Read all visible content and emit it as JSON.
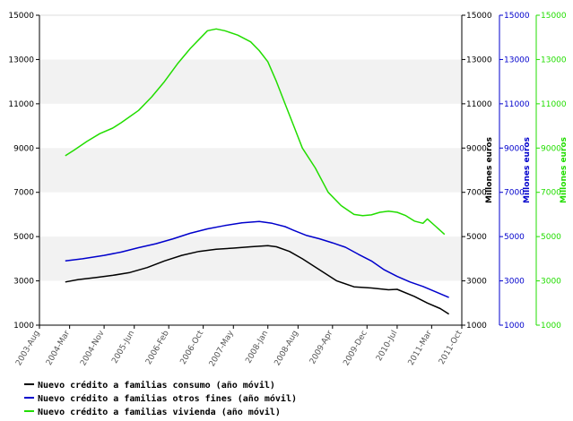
{
  "chart_data": {
    "type": "line",
    "title": "",
    "grid": "alternating horizontal bands",
    "legend_placement": "bottom-left",
    "x_axis": {
      "type": "date",
      "range": [
        "2003-08",
        "2011-10"
      ],
      "tick_labels": [
        "2003-Aug",
        "2004-Mar",
        "2004-Nov",
        "2005-Jun",
        "2006-Feb",
        "2006-Oct",
        "2007-May",
        "2008-Jan",
        "2008-Aug",
        "2009-Apr",
        "2009-Dec",
        "2010-Jul",
        "2011-Mar",
        "2011-Oct"
      ],
      "tick_dates": [
        "2003-08",
        "2004-03",
        "2004-11",
        "2005-06",
        "2006-02",
        "2006-10",
        "2007-05",
        "2008-01",
        "2008-08",
        "2009-04",
        "2009-12",
        "2010-07",
        "2011-03",
        "2011-10"
      ]
    },
    "y_axes": [
      {
        "side": "left",
        "ylim": [
          1000,
          15000
        ],
        "ticks": [
          "1000",
          "3000",
          "5000",
          "7000",
          "9000",
          "11000",
          "13000",
          "15000"
        ],
        "color": "#000000",
        "label": ""
      },
      {
        "side": "right",
        "ylim": [
          1000,
          15000
        ],
        "ticks": [
          "1000",
          "3000",
          "5000",
          "7000",
          "9000",
          "11000",
          "13000",
          "15000"
        ],
        "color": "#000000",
        "label": "Millones euros"
      },
      {
        "side": "right",
        "ylim": [
          1000,
          15000
        ],
        "ticks": [
          "1000",
          "3000",
          "5000",
          "7000",
          "9000",
          "11000",
          "13000",
          "15000"
        ],
        "color": "#0000cc",
        "label": "Millones euros"
      },
      {
        "side": "right",
        "ylim": [
          1000,
          15000
        ],
        "ticks": [
          "1000",
          "3000",
          "5000",
          "7000",
          "9000",
          "11000",
          "13000",
          "15000"
        ],
        "color": "#22dd00",
        "label": "Millones euros"
      }
    ],
    "series": [
      {
        "name": "Nuevo crédito a familias consumo (año móvil)",
        "color": "#000000",
        "points": [
          [
            "2004-02",
            2950
          ],
          [
            "2004-05",
            3060
          ],
          [
            "2004-09",
            3150
          ],
          [
            "2005-01",
            3250
          ],
          [
            "2005-05",
            3380
          ],
          [
            "2005-09",
            3600
          ],
          [
            "2006-01",
            3900
          ],
          [
            "2006-05",
            4150
          ],
          [
            "2006-09",
            4330
          ],
          [
            "2007-01",
            4430
          ],
          [
            "2007-05",
            4480
          ],
          [
            "2007-09",
            4540
          ],
          [
            "2008-01",
            4590
          ],
          [
            "2008-03",
            4540
          ],
          [
            "2008-06",
            4330
          ],
          [
            "2008-09",
            4000
          ],
          [
            "2009-01",
            3500
          ],
          [
            "2009-05",
            3000
          ],
          [
            "2009-09",
            2730
          ],
          [
            "2010-01",
            2680
          ],
          [
            "2010-05",
            2600
          ],
          [
            "2010-07",
            2620
          ],
          [
            "2010-11",
            2300
          ],
          [
            "2011-02",
            2000
          ],
          [
            "2011-05",
            1750
          ],
          [
            "2011-07",
            1500
          ]
        ]
      },
      {
        "name": "Nuevo crédito a familias otros fines (año móvil)",
        "color": "#0000cc",
        "points": [
          [
            "2004-02",
            3900
          ],
          [
            "2004-06",
            4000
          ],
          [
            "2004-11",
            4150
          ],
          [
            "2005-03",
            4300
          ],
          [
            "2005-07",
            4500
          ],
          [
            "2005-11",
            4680
          ],
          [
            "2006-03",
            4900
          ],
          [
            "2006-07",
            5150
          ],
          [
            "2006-11",
            5350
          ],
          [
            "2007-03",
            5500
          ],
          [
            "2007-07",
            5620
          ],
          [
            "2007-11",
            5680
          ],
          [
            "2008-02",
            5600
          ],
          [
            "2008-05",
            5450
          ],
          [
            "2008-07",
            5280
          ],
          [
            "2008-10",
            5050
          ],
          [
            "2009-01",
            4900
          ],
          [
            "2009-04",
            4720
          ],
          [
            "2009-07",
            4520
          ],
          [
            "2009-10",
            4200
          ],
          [
            "2010-01",
            3900
          ],
          [
            "2010-04",
            3500
          ],
          [
            "2010-07",
            3200
          ],
          [
            "2010-10",
            2950
          ],
          [
            "2011-01",
            2750
          ],
          [
            "2011-04",
            2500
          ],
          [
            "2011-07",
            2250
          ]
        ]
      },
      {
        "name": "Nuevo crédito a familias vivienda (año móvil)",
        "color": "#22dd00",
        "points": [
          [
            "2004-02",
            8650
          ],
          [
            "2004-04",
            8900
          ],
          [
            "2004-07",
            9300
          ],
          [
            "2004-10",
            9650
          ],
          [
            "2005-01",
            9900
          ],
          [
            "2005-03",
            10150
          ],
          [
            "2005-07",
            10700
          ],
          [
            "2005-10",
            11300
          ],
          [
            "2006-01",
            12000
          ],
          [
            "2006-04",
            12800
          ],
          [
            "2006-07",
            13500
          ],
          [
            "2006-09",
            13900
          ],
          [
            "2006-11",
            14300
          ],
          [
            "2007-01",
            14380
          ],
          [
            "2007-03",
            14300
          ],
          [
            "2007-06",
            14100
          ],
          [
            "2007-09",
            13800
          ],
          [
            "2007-11",
            13400
          ],
          [
            "2008-01",
            12900
          ],
          [
            "2008-03",
            12000
          ],
          [
            "2008-05",
            11000
          ],
          [
            "2008-07",
            10000
          ],
          [
            "2008-09",
            9000
          ],
          [
            "2008-12",
            8100
          ],
          [
            "2009-03",
            7000
          ],
          [
            "2009-06",
            6400
          ],
          [
            "2009-09",
            6000
          ],
          [
            "2009-11",
            5950
          ],
          [
            "2010-01",
            5980
          ],
          [
            "2010-03",
            6100
          ],
          [
            "2010-05",
            6150
          ],
          [
            "2010-07",
            6100
          ],
          [
            "2010-09",
            5950
          ],
          [
            "2010-11",
            5700
          ],
          [
            "2011-01",
            5600
          ],
          [
            "2011-02",
            5800
          ],
          [
            "2011-04",
            5450
          ],
          [
            "2011-06",
            5100
          ]
        ]
      }
    ]
  }
}
